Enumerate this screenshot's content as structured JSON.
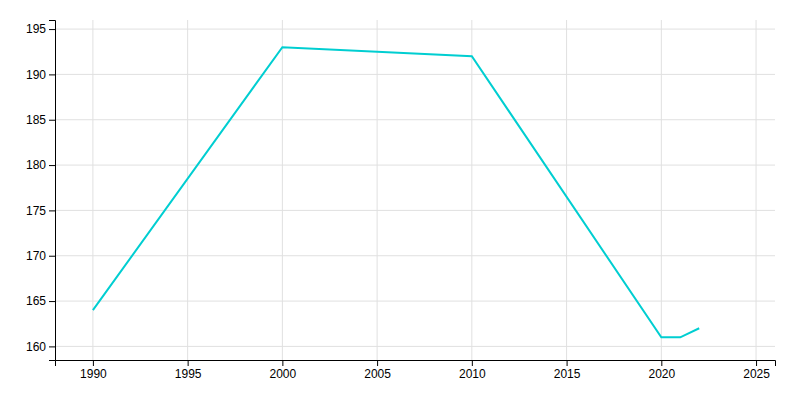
{
  "chart_data": {
    "type": "line",
    "x": [
      1990,
      2000,
      2010,
      2020,
      2021,
      2022
    ],
    "values": [
      164,
      193,
      192,
      161,
      161,
      162
    ],
    "color": "#00CED1",
    "xlim": [
      1988,
      2026
    ],
    "ylim": [
      158.5,
      196
    ],
    "xticks": [
      1990,
      1995,
      2000,
      2005,
      2010,
      2015,
      2020,
      2025
    ],
    "yticks": [
      160,
      165,
      170,
      175,
      180,
      185,
      190,
      195
    ],
    "grid": true
  }
}
